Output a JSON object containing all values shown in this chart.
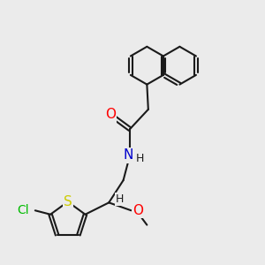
{
  "background_color": "#ebebeb",
  "bond_color": "#1a1a1a",
  "bond_width": 1.5,
  "atom_colors": {
    "O": "#ff0000",
    "N": "#0000cc",
    "S": "#cccc00",
    "Cl": "#00bb00",
    "C": "#1a1a1a",
    "H": "#1a1a1a"
  },
  "font_size": 9,
  "fig_width": 3.0,
  "fig_height": 3.0,
  "dpi": 100,
  "naph_side": 0.72,
  "naph_center_left_x": 5.55,
  "naph_center_left_y": 7.55,
  "xlim": [
    0,
    10
  ],
  "ylim": [
    0,
    10
  ]
}
